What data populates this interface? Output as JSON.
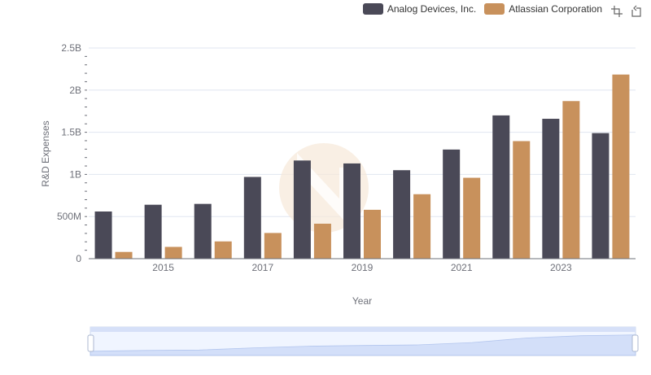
{
  "legend": {
    "series_a": "Analog Devices, Inc.",
    "series_b": "Atlassian Corporation"
  },
  "colors": {
    "series_a": "#4a4957",
    "series_b": "#c8915c",
    "grid": "#e0e6f1",
    "zoom_fill": "#d6e0f8",
    "zoom_border": "#c4cee6"
  },
  "toolbox": {
    "icons": [
      "zoom-icon",
      "restore-icon"
    ]
  },
  "chart_data": {
    "type": "bar",
    "categories": [
      "2014",
      "2015",
      "2016",
      "2017",
      "2018",
      "2019",
      "2020",
      "2021",
      "2022",
      "2023",
      "2024"
    ],
    "x_tick_labels": [
      "2015",
      "2017",
      "2019",
      "2021",
      "2023"
    ],
    "series": [
      {
        "name": "Analog Devices, Inc.",
        "values": [
          560000000,
          640000000,
          650000000,
          970000000,
          1165000000,
          1130000000,
          1050000000,
          1295000000,
          1700000000,
          1660000000,
          1490000000
        ]
      },
      {
        "name": "Atlassian Corporation",
        "values": [
          80000000,
          140000000,
          205000000,
          305000000,
          415000000,
          580000000,
          765000000,
          960000000,
          1395000000,
          1870000000,
          2185000000
        ]
      }
    ],
    "y_tick_labels": [
      "0",
      "500M",
      "1B",
      "1.5B",
      "2B",
      "2.5B"
    ],
    "y_ticks": [
      0,
      500000000,
      1000000000,
      1500000000,
      2000000000,
      2500000000
    ],
    "ylim": [
      0,
      2500000000
    ],
    "xlabel": "Year",
    "ylabel": "R&D Expenses",
    "legend_position": "top-right",
    "grid": true
  }
}
